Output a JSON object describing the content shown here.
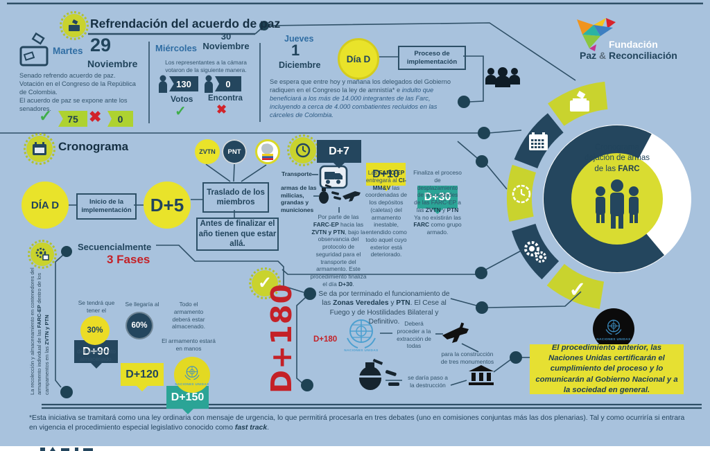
{
  "colors": {
    "background": "#a8c2dd",
    "navy": "#24465e",
    "yellow": "#e9e32a",
    "lime": "#c9d32e",
    "teal": "#2ba496",
    "red": "#c42127",
    "green": "#3fae49",
    "un_blue": "#4da0d0",
    "steel_blue": "#2f6da3"
  },
  "icons": {
    "check": "✓",
    "cross": "✖"
  },
  "header": {
    "title": "Refrendación del acuerdo de paz",
    "brand_line1": "Fundación",
    "brand_paz": "Paz",
    "brand_amp": "&",
    "brand_rec": "Reconciliación"
  },
  "martes": {
    "day": "Martes",
    "date_number": "29",
    "date_month": "Noviembre",
    "body": "Senado refrendo acuerdo de paz.\nVotación en el Congreso de la República de Colombia.\nEl acuerdo de paz se expone ante los senadores.",
    "yes_value": "75",
    "no_value": "0"
  },
  "miercoles": {
    "day": "Miércoles",
    "date": "30\nNoviembre",
    "body": "Los representantes a la cámara votaron de la siguiente manera.",
    "votes_value": "130",
    "votes_label": "Votos",
    "against_value": "0",
    "against_label": "Encontra"
  },
  "jueves": {
    "day": "Jueves",
    "date_number": "1",
    "date_month": "Diciembre",
    "dia_d": "Día D",
    "process_box": "Proceso de implementación",
    "body_start": "Se espera que entre hoy y mañana los delegados del Gobierno radiquen en el Congreso la ley de amnistía* e ",
    "body_italic": "indulto que beneficiará a los más de 14.000 integrantes de las Farc, incluyendo a cerca de 4.000 combatientes recluidos en las cárceles de Colombia."
  },
  "ring": {
    "line1": "Cronograma",
    "line2": "dejación de armas",
    "line3": "de las **FARC**"
  },
  "cronograma": {
    "heading": "Cronograma",
    "zvtn": "ZVTN",
    "pnt": "PNT",
    "dia_d": "DÍA D",
    "inicio": "Inicio de la implementación",
    "d5": "D+5",
    "traslado": "Traslado de los miembros",
    "antes": "Antes de finalizar el año tienen que estar allá.",
    "d7_label": "D+7",
    "d7_transporte": "Transporte",
    "d7_armas": "armas de las milicias, grandas y municiones",
    "d7_body": "Por parte de las **FARC-EP** hacia las **ZVTN y PTN**, bajo la observancia del protocolo de seguridad para el transporte del armamento. Este procedimiento finaliza el día **D+30**.",
    "d10_label": "D+10",
    "d10_body": "Las **FARC-EP** entregará al **CI-MM&V** las coordenadas de los depósitos (caletas) del armamento inestable, entendido como todo aquel cuyo exterior está deteriorado.",
    "d30_label": "D+30",
    "d30_body": "Finaliza el proceso de desplazamiento de las unidades de las FARC-EP a las **ZVTN** y **PTN** Ya no existirán las **FARC** como grupo armado."
  },
  "secuencial": {
    "side_note": "La recolección y almacenamiento en contenedores del armamento individual de las **FARC-EP** dentro de los campamentos en las **ZVTN y PTN**",
    "heading": "Secuencialmente",
    "fases": "3 Fases",
    "d90_label": "D+90",
    "d90_pre": "Se tendrá que tener el",
    "d90_pct": "30%",
    "d90_post": "del armamento almacenado.",
    "d120_label": "D+120",
    "d120_pre": "Se llegaría al",
    "d120_pct": "60%",
    "d150_label": "D+150",
    "d150_body": "Todo el armamento deberá estar almacenado.",
    "d150_body2": "El armamento estará en manos",
    "un_caption": "NACIONES UNIDAS"
  },
  "d180": {
    "big": "D+180",
    "intro": "Se da por terminado el funcionamiento de las **Zonas Veredales** y **PTN**. El Cese al Fuego y de Hostilidades Bilateral y Definitivo.",
    "label": "D+180",
    "un_caption": "NACIONES UNIDAS",
    "extraccion": "Deberá proceder a la extracción de todas",
    "monumentos": "para la construcción de tres monumentos",
    "destruccion": "se daría paso a la destrucción"
  },
  "certification": {
    "un_caption": "NACIONES UNIDAS",
    "note": "El procedimiento anterior, las Naciones Unidas certificarán el cumplimiento del proceso y lo comunicarán al Gobierno Nacional y a la sociedad en general."
  },
  "footnote": "*Esta iniciativa se tramitará como una ley ordinaria con mensaje de urgencia, lo que permitirá procesarla en tres debates (uno en comisiones conjuntas más las dos plenarias). Tal y como ocurriría si entrara en vigencia el procedimiento especial legislativo conocido como **fast track**."
}
